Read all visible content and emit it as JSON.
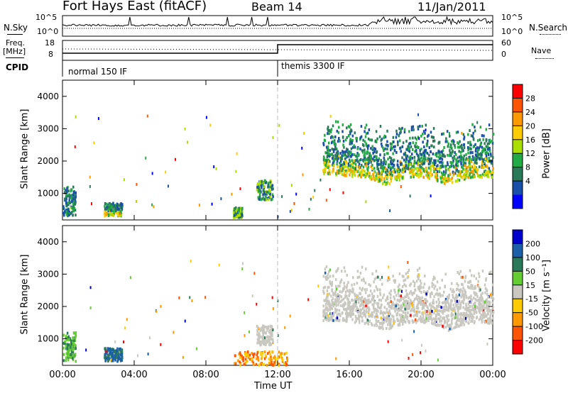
{
  "header": {
    "station": "Fort Hays East (fitACF)",
    "beam": "Beam 14",
    "date": "11/Jan/2011"
  },
  "noise_panel": {
    "left_label": "N.Sky",
    "left_ticks": [
      "10^5",
      "10^0"
    ],
    "right_label": "N.Search",
    "right_ticks": [
      "10^5",
      "10^0"
    ]
  },
  "freq_panel": {
    "left_label_1": "Freq.",
    "left_label_2": "[MHz]",
    "left_ticks": [
      "18",
      "8"
    ],
    "right_label": "Nave",
    "right_ticks": [
      "60",
      "0"
    ]
  },
  "cpid_panel": {
    "label": "CPID",
    "modes": [
      "normal 150 IF",
      "themis 3300 IF"
    ]
  },
  "chart_data": [
    {
      "type": "heatmap",
      "name": "power",
      "xlabel": "",
      "ylabel": "Slant Range [km]",
      "x_range": [
        "00:00",
        "24:00"
      ],
      "ylim": [
        180,
        4500
      ],
      "yticks": [
        "1000",
        "2000",
        "3000",
        "4000"
      ],
      "colorbar": {
        "label": "Power [dB]",
        "ticks": [
          "28",
          "24",
          "20",
          "16",
          "12",
          "8",
          "4"
        ],
        "colors": [
          "#ff0000",
          "#ff5500",
          "#ff9900",
          "#ffcc00",
          "#aadd00",
          "#22aa44",
          "#2a7a5a",
          "#1a4fa8",
          "#0000ff"
        ]
      },
      "features": [
        {
          "t_start": 0.0,
          "t_end": 0.7,
          "r_start": 300,
          "r_end": 1200,
          "level": "low-mid"
        },
        {
          "t_start": 2.3,
          "t_end": 3.3,
          "r_start": 300,
          "r_end": 700,
          "level": "mid-high"
        },
        {
          "t_start": 9.5,
          "t_end": 10.0,
          "r_start": 250,
          "r_end": 550,
          "level": "mid"
        },
        {
          "t_start": 10.8,
          "t_end": 11.7,
          "r_start": 800,
          "r_end": 1400,
          "level": "mid"
        },
        {
          "t_start": 14.5,
          "t_end": 24.0,
          "r_start": 1200,
          "r_end": 3500,
          "level": "mid-high"
        }
      ]
    },
    {
      "type": "heatmap",
      "name": "velocity",
      "xlabel": "Time UT",
      "ylabel": "Slant Range [km]",
      "x_range": [
        "00:00",
        "24:00"
      ],
      "xticks": [
        "00:00",
        "04:00",
        "08:00",
        "12:00",
        "16:00",
        "20:00",
        "00:00"
      ],
      "ylim": [
        180,
        4500
      ],
      "yticks": [
        "1000",
        "2000",
        "3000",
        "4000"
      ],
      "colorbar": {
        "label": "Velocity [m s⁻¹]",
        "ticks": [
          "200",
          "100",
          "50",
          "15",
          "-15",
          "-50",
          "-100",
          "-200"
        ],
        "colors": [
          "#0000cc",
          "#1a5fa8",
          "#2a7a5a",
          "#66cc33",
          "#c8c8c0",
          "#ffcc00",
          "#ff9900",
          "#ff5500",
          "#ff0000"
        ]
      },
      "features": [
        {
          "t_start": 0.0,
          "t_end": 0.7,
          "r_start": 300,
          "r_end": 1200,
          "level": "positive"
        },
        {
          "t_start": 2.3,
          "t_end": 3.3,
          "r_start": 300,
          "r_end": 700,
          "level": "strong-positive"
        },
        {
          "t_start": 9.5,
          "t_end": 12.5,
          "r_start": 180,
          "r_end": 600,
          "level": "negative"
        },
        {
          "t_start": 10.8,
          "t_end": 11.7,
          "r_start": 800,
          "r_end": 1400,
          "level": "ground-scatter"
        },
        {
          "t_start": 14.5,
          "t_end": 24.0,
          "r_start": 1200,
          "r_end": 3500,
          "level": "ground-scatter"
        }
      ]
    }
  ]
}
